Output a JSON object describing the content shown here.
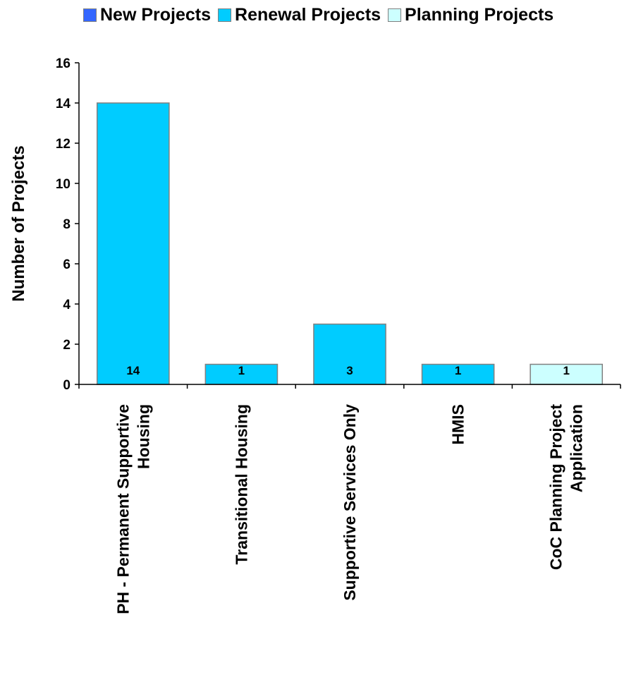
{
  "chart_data": {
    "type": "bar",
    "categories": [
      [
        "PH - Permanent Supportive",
        "Housing"
      ],
      [
        "Transitional Housing"
      ],
      [
        "Supportive Services Only"
      ],
      [
        "HMIS"
      ],
      [
        "CoC Planning Project",
        "Application"
      ]
    ],
    "legend": [
      {
        "name": "New Projects",
        "color": "#3366ff"
      },
      {
        "name": "Renewal Projects",
        "color": "#00ccff"
      },
      {
        "name": "Planning Projects",
        "color": "#ccffff"
      }
    ],
    "bars": [
      {
        "value": 14,
        "series": 1,
        "label": "14"
      },
      {
        "value": 1,
        "series": 1,
        "label": "1"
      },
      {
        "value": 3,
        "series": 1,
        "label": "3"
      },
      {
        "value": 1,
        "series": 1,
        "label": "1"
      },
      {
        "value": 1,
        "series": 2,
        "label": "1"
      }
    ],
    "ylabel": "Number of Projects",
    "xlabel": "",
    "ylim": [
      0,
      16
    ],
    "yticks": [
      0,
      2,
      4,
      6,
      8,
      10,
      12,
      14,
      16
    ],
    "grid": false,
    "legend_position": "top"
  }
}
